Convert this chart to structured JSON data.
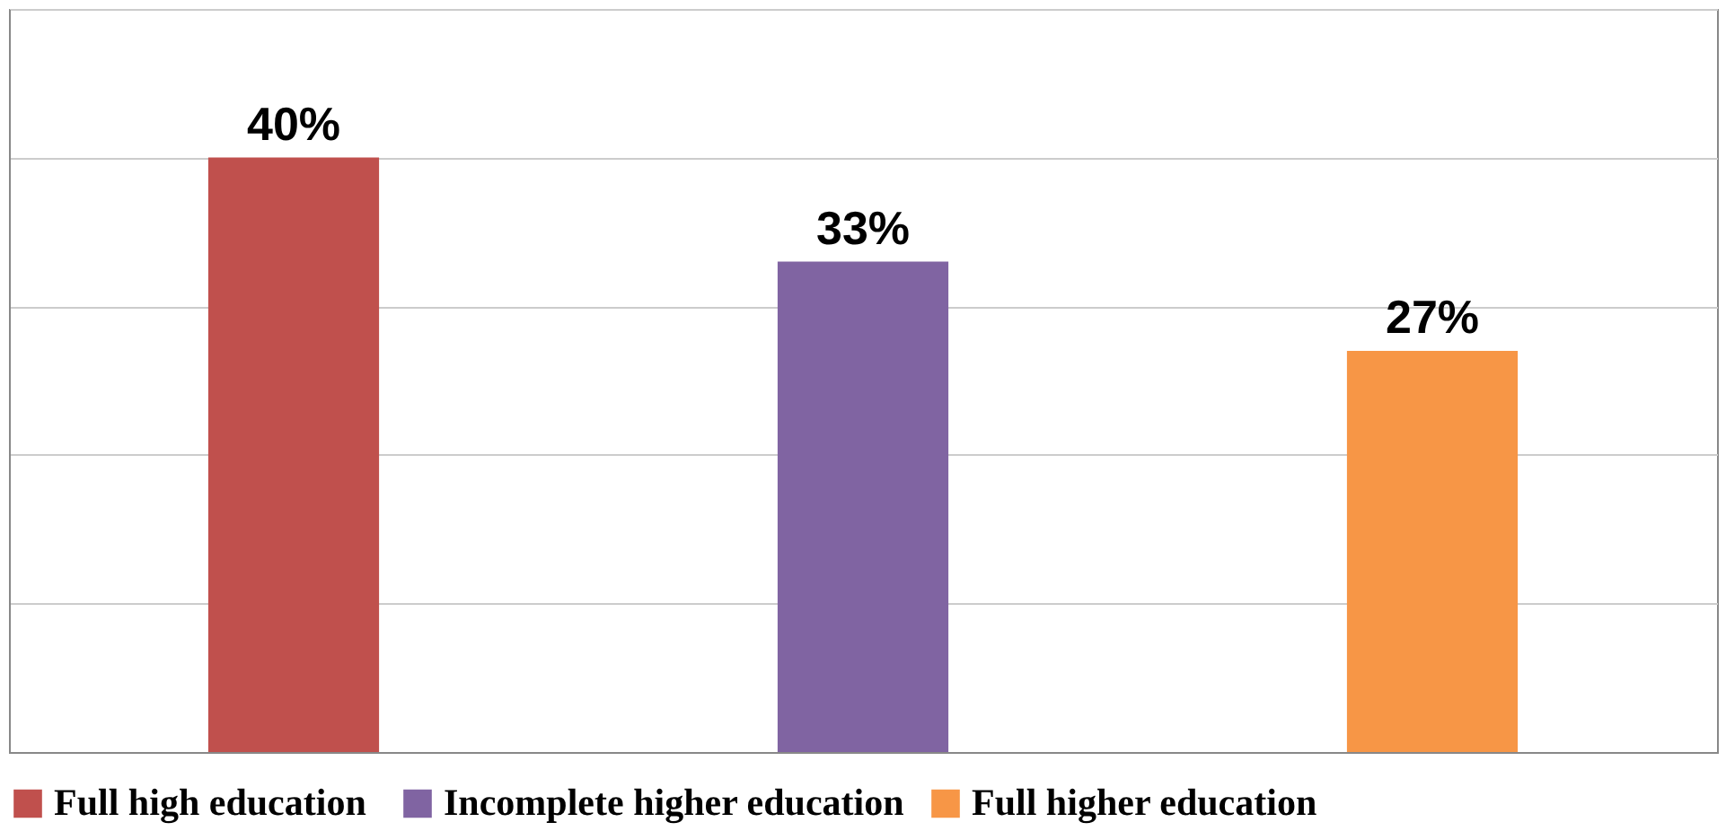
{
  "chart_data": {
    "type": "bar",
    "categories": [
      null,
      null,
      null
    ],
    "stacked": true,
    "series": [
      {
        "name": "Full high  education",
        "color": "#c0504d",
        "values": [
          40,
          null,
          null
        ],
        "value_labels": [
          "40%",
          null,
          null
        ]
      },
      {
        "name": "Incomplete higher education",
        "color": "#8064a2",
        "values": [
          null,
          33,
          null
        ],
        "value_labels": [
          null,
          "33%",
          null
        ]
      },
      {
        "name": "Full higher education",
        "color": "#f79646",
        "values": [
          null,
          null,
          27
        ],
        "value_labels": [
          null,
          null,
          "27%"
        ]
      }
    ],
    "ylim": [
      0,
      50
    ],
    "yticks": [
      {
        "value": 0,
        "label": null
      },
      {
        "value": 10,
        "label": null
      },
      {
        "value": 20,
        "label": null
      },
      {
        "value": 30,
        "label": null
      },
      {
        "value": 40,
        "label": null
      },
      {
        "value": 50,
        "label": null
      }
    ],
    "grid": "y",
    "legend": "bottom",
    "tick_labels": false
  }
}
